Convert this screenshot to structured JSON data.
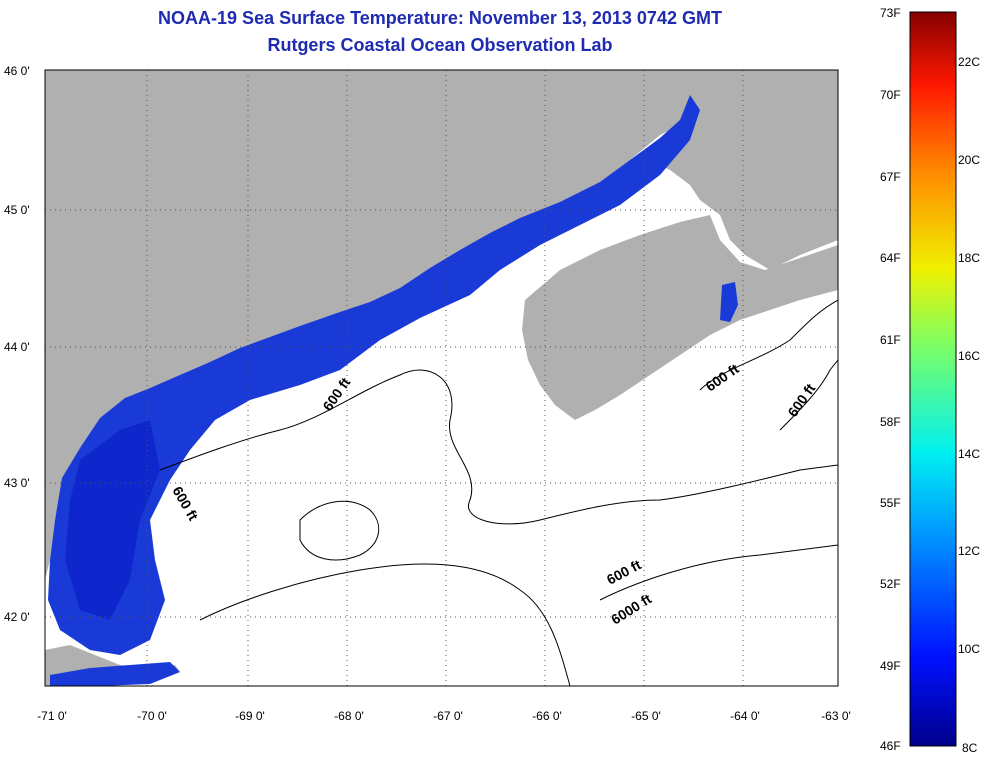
{
  "title_line1": "NOAA-19 Sea Surface Temperature:  November 13, 2013 0742 GMT",
  "title_line2": "Rutgers Coastal Ocean Observation Lab",
  "map": {
    "lon_labels": [
      "-71 0'",
      "-70 0'",
      "-69 0'",
      "-68 0'",
      "-67 0'",
      "-66 0'",
      "-65 0'",
      "-64 0'",
      "-63 0'"
    ],
    "lat_labels": [
      "46 0'",
      "45 0'",
      "44 0'",
      "43 0'",
      "42 0'"
    ],
    "contour_labels": [
      "600 ft",
      "600 ft",
      "600 ft",
      "600 ft",
      "600 ft",
      "6000 ft"
    ],
    "colors": {
      "land": "#b0b0b0",
      "sst_cool": "#1a3ad8",
      "sst_deep": "#0a1fc8"
    }
  },
  "colorbar": {
    "f_labels": [
      "73F",
      "70F",
      "67F",
      "64F",
      "61F",
      "58F",
      "55F",
      "52F",
      "49F",
      "46F"
    ],
    "c_labels": [
      "22C",
      "20C",
      "18C",
      "16C",
      "14C",
      "12C",
      "10C",
      "8C"
    ]
  }
}
